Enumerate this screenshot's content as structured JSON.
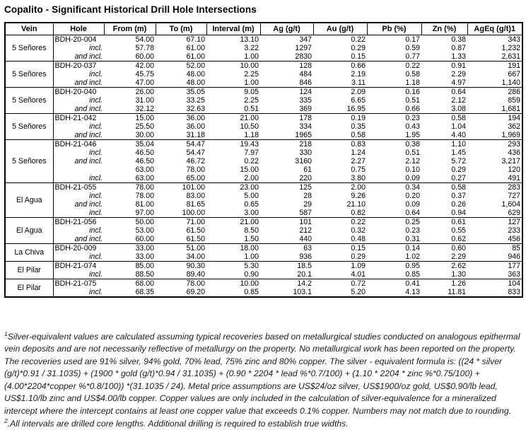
{
  "title": "Copalito - Significant Historical Drill Hole Intersections",
  "table": {
    "columns": [
      "Vein",
      "Hole",
      "From (m)",
      "To (m)",
      "Interval (m)",
      "Ag (g/t)",
      "Au (g/t)",
      "Pb (%)",
      "Zn (%)",
      "AgEq (g/t)1"
    ],
    "groups": [
      {
        "vein": "5 Señores",
        "rows": [
          {
            "hole": "BDH-20-004",
            "from": "54.00",
            "to": "67.10",
            "interval": "13.10",
            "ag": "347",
            "au": "0.22",
            "pb": "0.17",
            "zn": "0.38",
            "ageq": "343"
          },
          {
            "hole": "incl.",
            "from": "57.78",
            "to": "61.00",
            "interval": "3.22",
            "ag": "1297",
            "au": "0.29",
            "pb": "0.59",
            "zn": "0.87",
            "ageq": "1,232"
          },
          {
            "hole": "and incl.",
            "from": "60.00",
            "to": "61.00",
            "interval": "1.00",
            "ag": "2830",
            "au": "0.15",
            "pb": "0.77",
            "zn": "1.33",
            "ageq": "2,631"
          }
        ]
      },
      {
        "vein": "5 Señores",
        "rows": [
          {
            "hole": "BDH-20-037",
            "from": "42.00",
            "to": "52.00",
            "interval": "10.00",
            "ag": "128",
            "au": "0.66",
            "pb": "0.22",
            "zn": "0.91",
            "ageq": "191"
          },
          {
            "hole": "incl.",
            "from": "45.75",
            "to": "48.00",
            "interval": "2.25",
            "ag": "484",
            "au": "2.19",
            "pb": "0.58",
            "zn": "2.29",
            "ageq": "667"
          },
          {
            "hole": "and incl.",
            "from": "47.00",
            "to": "48.00",
            "interval": "1.00",
            "ag": "846",
            "au": "3.11",
            "pb": "1.18",
            "zn": "4.97",
            "ageq": "1,140"
          }
        ]
      },
      {
        "vein": "5 Señores",
        "rows": [
          {
            "hole": "BDH-20-040",
            "from": "26.00",
            "to": "35.05",
            "interval": "9.05",
            "ag": "124",
            "au": "2.09",
            "pb": "0.16",
            "zn": "0.64",
            "ageq": "286"
          },
          {
            "hole": "incl.",
            "from": "31.00",
            "to": "33.25",
            "interval": "2.25",
            "ag": "335",
            "au": "6.65",
            "pb": "0.51",
            "zn": "2.12",
            "ageq": "859"
          },
          {
            "hole": "and incl.",
            "from": "32.12",
            "to": "32.63",
            "interval": "0.51",
            "ag": "369",
            "au": "16.95",
            "pb": "0.66",
            "zn": "3.08",
            "ageq": "1,681"
          }
        ]
      },
      {
        "vein": "5 Señores",
        "rows": [
          {
            "hole": "BDH-21-042",
            "from": "15.00",
            "to": "36.00",
            "interval": "21.00",
            "ag": "178",
            "au": "0.19",
            "pb": "0.23",
            "zn": "0.58",
            "ageq": "194"
          },
          {
            "hole": "incl.",
            "from": "25.50",
            "to": "36.00",
            "interval": "10.50",
            "ag": "334",
            "au": "0.35",
            "pb": "0.43",
            "zn": "1.04",
            "ageq": "362"
          },
          {
            "hole": "and incl.",
            "from": "30.00",
            "to": "31.18",
            "interval": "1.18",
            "ag": "1965",
            "au": "0.58",
            "pb": "1.95",
            "zn": "4.40",
            "ageq": "1,969"
          }
        ]
      },
      {
        "vein": "5 Señores",
        "rows": [
          {
            "hole": "BDH-21-046",
            "from": "35.04",
            "to": "54.47",
            "interval": "19.43",
            "ag": "218",
            "au": "0.83",
            "pb": "0.38",
            "zn": "1.10",
            "ageq": "293"
          },
          {
            "hole": "incl.",
            "from": "46.50",
            "to": "54.47",
            "interval": "7.97",
            "ag": "330",
            "au": "1.24",
            "pb": "0.51",
            "zn": "1.45",
            "ageq": "436"
          },
          {
            "hole": "and incl.",
            "from": "46.50",
            "to": "46.72",
            "interval": "0.22",
            "ag": "3160",
            "au": "2.27",
            "pb": "2.12",
            "zn": "5.72",
            "ageq": "3,217"
          },
          {
            "hole": "",
            "from": "63.00",
            "to": "78.00",
            "interval": "15.00",
            "ag": "61",
            "au": "0.75",
            "pb": "0.10",
            "zn": "0.29",
            "ageq": "120"
          },
          {
            "hole": "incl.",
            "from": "63.00",
            "to": "65.00",
            "interval": "2.00",
            "ag": "220",
            "au": "3.80",
            "pb": "0.09",
            "zn": "0.27",
            "ageq": "491"
          }
        ]
      },
      {
        "vein": "El Agua",
        "rows": [
          {
            "hole": "BDH-21-055",
            "from": "78.00",
            "to": "101.00",
            "interval": "23.00",
            "ag": "125",
            "au": "2.00",
            "pb": "0.34",
            "zn": "0.58",
            "ageq": "283"
          },
          {
            "hole": "incl.",
            "from": "78.00",
            "to": "83.00",
            "interval": "5.00",
            "ag": "28",
            "au": "9.26",
            "pb": "0.20",
            "zn": "0.37",
            "ageq": "727"
          },
          {
            "hole": "and incl.",
            "from": "81.00",
            "to": "81.65",
            "interval": "0.65",
            "ag": "29",
            "au": "21.10",
            "pb": "0.09",
            "zn": "0.26",
            "ageq": "1,604"
          },
          {
            "hole": "incl.",
            "from": "97.00",
            "to": "100.00",
            "interval": "3.00",
            "ag": "587",
            "au": "0.82",
            "pb": "0.64",
            "zn": "0.94",
            "ageq": "629"
          }
        ]
      },
      {
        "vein": "El Agua",
        "rows": [
          {
            "hole": "BDH-21-056",
            "from": "50.00",
            "to": "71.00",
            "interval": "21.00",
            "ag": "101",
            "au": "0.22",
            "pb": "0.25",
            "zn": "0.61",
            "ageq": "127"
          },
          {
            "hole": "incl.",
            "from": "53.00",
            "to": "61.50",
            "interval": "8.50",
            "ag": "212",
            "au": "0.32",
            "pb": "0.23",
            "zn": "0.55",
            "ageq": "233"
          },
          {
            "hole": "and incl.",
            "from": "60.00",
            "to": "61.50",
            "interval": "1.50",
            "ag": "440",
            "au": "0.48",
            "pb": "0.31",
            "zn": "0.62",
            "ageq": "456"
          }
        ]
      },
      {
        "vein": "La Chiva",
        "rows": [
          {
            "hole": "BDH-20-009",
            "from": "33.00",
            "to": "51.00",
            "interval": "18.00",
            "ag": "63",
            "au": "0.15",
            "pb": "0.14",
            "zn": "0.60",
            "ageq": "85"
          },
          {
            "hole": "incl.",
            "from": "33.00",
            "to": "34.00",
            "interval": "1.00",
            "ag": "936",
            "au": "0.29",
            "pb": "1.02",
            "zn": "2.29",
            "ageq": "946"
          }
        ]
      },
      {
        "vein": "El Pilar",
        "rows": [
          {
            "hole": "BDH-21-074",
            "from": "85.00",
            "to": "90.30",
            "interval": "5.30",
            "ag": "18.5",
            "au": "1.09",
            "pb": "0.95",
            "zn": "2.62",
            "ageq": "177"
          },
          {
            "hole": "incl.",
            "from": "88.50",
            "to": "89.40",
            "interval": "0.90",
            "ag": "20.1",
            "au": "4.01",
            "pb": "0.85",
            "zn": "1.30",
            "ageq": "363"
          }
        ]
      },
      {
        "vein": "El Pilar",
        "rows": [
          {
            "hole": "BDH-21-075",
            "from": "68.00",
            "to": "78.00",
            "interval": "10.00",
            "ag": "14.2",
            "au": "0.72",
            "pb": "0.41",
            "zn": "1.26",
            "ageq": "104"
          },
          {
            "hole": "incl.",
            "from": "68.35",
            "to": "69.20",
            "interval": "0.85",
            "ag": "103.1",
            "au": "5.20",
            "pb": "4.13",
            "zn": "11.81",
            "ageq": "833"
          }
        ]
      }
    ]
  },
  "footnote": {
    "sup1": "1",
    "part1": "Silver-equivalent values are calculated assuming typical recoveries based on metallurgical studies conducted on analogous epithermal vein deposits and are not necessarily reflective of metallurgy on the property. No metallurgical work has been reported on the property. The recoveries used are 91% silver, 94% gold, 70% lead, 75% zinc and 80% copper. The silver - equivalent formula is: ((24 * silver (g/t)*0.91 / 31.1035) + (1900 * gold (g/t)*0.94 / 31.1035) + (0.90 * 2204 * lead %*0.7/100) + (1.10 * 2204 * zinc %*0.75/100) + (4.00*2204*copper %*0.8/100)) *(31.1035 / 24). Metal price assumptions are US$24/oz silver, US$1900/oz gold, US$0.90/lb lead, US$1.10/lb zinc and US$4.00/lb copper. Copper values are only included in the calculation of silver-equivalence for a mineralized intercept where the intercept contains at least one copper value that exceeds 0.1% copper. Numbers may not match due to rounding. ",
    "sup2": "2",
    "part2": ".All intervals are drilled core lengths. Additional drilling is required to establish true widths."
  }
}
